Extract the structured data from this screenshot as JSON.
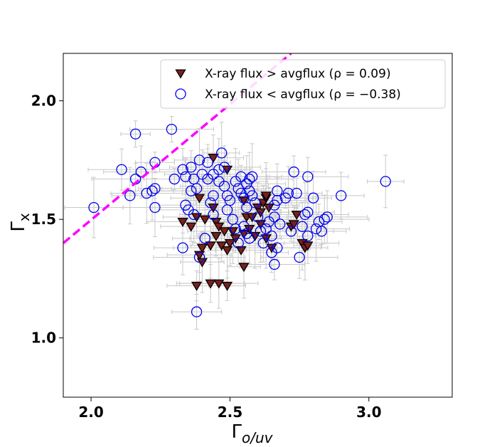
{
  "chart_data": {
    "type": "scatter",
    "xlim": [
      1.9,
      3.3
    ],
    "ylim": [
      0.75,
      2.2
    ],
    "x_ticks": [
      2.0,
      2.5,
      3.0
    ],
    "x_tick_labels": [
      "2.0",
      "2.5",
      "3.0"
    ],
    "y_ticks": [
      1.0,
      1.5,
      2.0
    ],
    "y_tick_labels": [
      "1.0",
      "1.5",
      "2.0"
    ],
    "xlabel": "Γ",
    "xlabel_sub": "o/uv",
    "ylabel": "Γ",
    "ylabel_sub": "x",
    "grid": false,
    "legend_position": "top-right",
    "reference_line": {
      "style": "dashed",
      "color": "#ff00ff",
      "points": [
        [
          1.9,
          1.4
        ],
        [
          2.72,
          2.2
        ]
      ]
    },
    "series": [
      {
        "name_text": "X-ray flux  > avgflux (ρ = 0.09)",
        "marker": "triangle-down",
        "color": "#7a1f1f",
        "edge_color": "#000000",
        "points": [
          [
            2.44,
            1.76
          ],
          [
            2.49,
            1.71
          ],
          [
            2.39,
            1.59
          ],
          [
            2.44,
            1.55
          ],
          [
            2.38,
            1.51
          ],
          [
            2.41,
            1.5
          ],
          [
            2.33,
            1.49
          ],
          [
            2.36,
            1.47
          ],
          [
            2.45,
            1.49
          ],
          [
            2.46,
            1.47
          ],
          [
            2.48,
            1.45
          ],
          [
            2.51,
            1.45
          ],
          [
            2.45,
            1.43
          ],
          [
            2.52,
            1.42
          ],
          [
            2.5,
            1.4
          ],
          [
            2.47,
            1.39
          ],
          [
            2.43,
            1.39
          ],
          [
            2.4,
            1.38
          ],
          [
            2.39,
            1.35
          ],
          [
            2.49,
            1.37
          ],
          [
            2.54,
            1.37
          ],
          [
            2.55,
            1.3
          ],
          [
            2.4,
            1.32
          ],
          [
            2.38,
            1.22
          ],
          [
            2.43,
            1.23
          ],
          [
            2.46,
            1.23
          ],
          [
            2.49,
            1.22
          ],
          [
            2.56,
            1.51
          ],
          [
            2.58,
            1.51
          ],
          [
            2.6,
            1.55
          ],
          [
            2.62,
            1.57
          ],
          [
            2.61,
            1.53
          ],
          [
            2.63,
            1.59
          ],
          [
            2.64,
            1.55
          ],
          [
            2.61,
            1.48
          ],
          [
            2.57,
            1.46
          ],
          [
            2.55,
            1.44
          ],
          [
            2.59,
            1.43
          ],
          [
            2.63,
            1.42
          ],
          [
            2.65,
            1.38
          ],
          [
            2.72,
            1.47
          ],
          [
            2.73,
            1.48
          ],
          [
            2.74,
            1.52
          ],
          [
            2.76,
            1.4
          ],
          [
            2.77,
            1.38
          ],
          [
            2.78,
            1.39
          ],
          [
            2.55,
            1.58
          ],
          [
            2.63,
            1.6
          ]
        ]
      },
      {
        "name_text": "X-ray flux  < avgflux (ρ = −0.38)",
        "marker": "circle-open",
        "color": "#0000ee",
        "points": [
          [
            2.01,
            1.55
          ],
          [
            2.11,
            1.71
          ],
          [
            2.14,
            1.6
          ],
          [
            2.16,
            1.67
          ],
          [
            2.16,
            1.86
          ],
          [
            2.18,
            1.7
          ],
          [
            2.2,
            1.61
          ],
          [
            2.22,
            1.62
          ],
          [
            2.23,
            1.74
          ],
          [
            2.23,
            1.63
          ],
          [
            2.23,
            1.55
          ],
          [
            2.29,
            1.88
          ],
          [
            2.3,
            1.67
          ],
          [
            2.33,
            1.71
          ],
          [
            2.34,
            1.68
          ],
          [
            2.36,
            1.72
          ],
          [
            2.36,
            1.62
          ],
          [
            2.37,
            1.67
          ],
          [
            2.38,
            1.63
          ],
          [
            2.34,
            1.56
          ],
          [
            2.35,
            1.54
          ],
          [
            2.37,
            1.52
          ],
          [
            2.33,
            1.38
          ],
          [
            2.39,
            1.75
          ],
          [
            2.4,
            1.69
          ],
          [
            2.42,
            1.74
          ],
          [
            2.42,
            1.67
          ],
          [
            2.44,
            1.69
          ],
          [
            2.44,
            1.6
          ],
          [
            2.43,
            1.57
          ],
          [
            2.44,
            1.52
          ],
          [
            2.46,
            1.71
          ],
          [
            2.46,
            1.66
          ],
          [
            2.47,
            1.78
          ],
          [
            2.48,
            1.72
          ],
          [
            2.48,
            1.64
          ],
          [
            2.49,
            1.6
          ],
          [
            2.5,
            1.58
          ],
          [
            2.49,
            1.54
          ],
          [
            2.51,
            1.5
          ],
          [
            2.52,
            1.66
          ],
          [
            2.53,
            1.63
          ],
          [
            2.54,
            1.68
          ],
          [
            2.54,
            1.61
          ],
          [
            2.55,
            1.59
          ],
          [
            2.56,
            1.65
          ],
          [
            2.56,
            1.55
          ],
          [
            2.57,
            1.67
          ],
          [
            2.57,
            1.62
          ],
          [
            2.58,
            1.68
          ],
          [
            2.58,
            1.6
          ],
          [
            2.59,
            1.57
          ],
          [
            2.55,
            1.47
          ],
          [
            2.56,
            1.44
          ],
          [
            2.53,
            1.4
          ],
          [
            2.52,
            1.46
          ],
          [
            2.57,
            1.42
          ],
          [
            2.6,
            1.51
          ],
          [
            2.61,
            1.45
          ],
          [
            2.62,
            1.4
          ],
          [
            2.63,
            1.46
          ],
          [
            2.64,
            1.49
          ],
          [
            2.65,
            1.43
          ],
          [
            2.65,
            1.36
          ],
          [
            2.66,
            1.31
          ],
          [
            2.66,
            1.51
          ],
          [
            2.66,
            1.56
          ],
          [
            2.67,
            1.62
          ],
          [
            2.67,
            1.58
          ],
          [
            2.67,
            1.38
          ],
          [
            2.68,
            1.48
          ],
          [
            2.7,
            1.59
          ],
          [
            2.71,
            1.61
          ],
          [
            2.72,
            1.45
          ],
          [
            2.73,
            1.7
          ],
          [
            2.74,
            1.61
          ],
          [
            2.75,
            1.34
          ],
          [
            2.76,
            1.47
          ],
          [
            2.77,
            1.52
          ],
          [
            2.78,
            1.53
          ],
          [
            2.78,
            1.68
          ],
          [
            2.78,
            1.43
          ],
          [
            2.8,
            1.59
          ],
          [
            2.81,
            1.46
          ],
          [
            2.82,
            1.49
          ],
          [
            2.83,
            1.45
          ],
          [
            2.84,
            1.5
          ],
          [
            2.85,
            1.51
          ],
          [
            2.9,
            1.6
          ],
          [
            3.06,
            1.66
          ],
          [
            2.39,
            1.34
          ],
          [
            2.38,
            1.11
          ],
          [
            2.41,
            1.42
          ]
        ]
      }
    ]
  }
}
